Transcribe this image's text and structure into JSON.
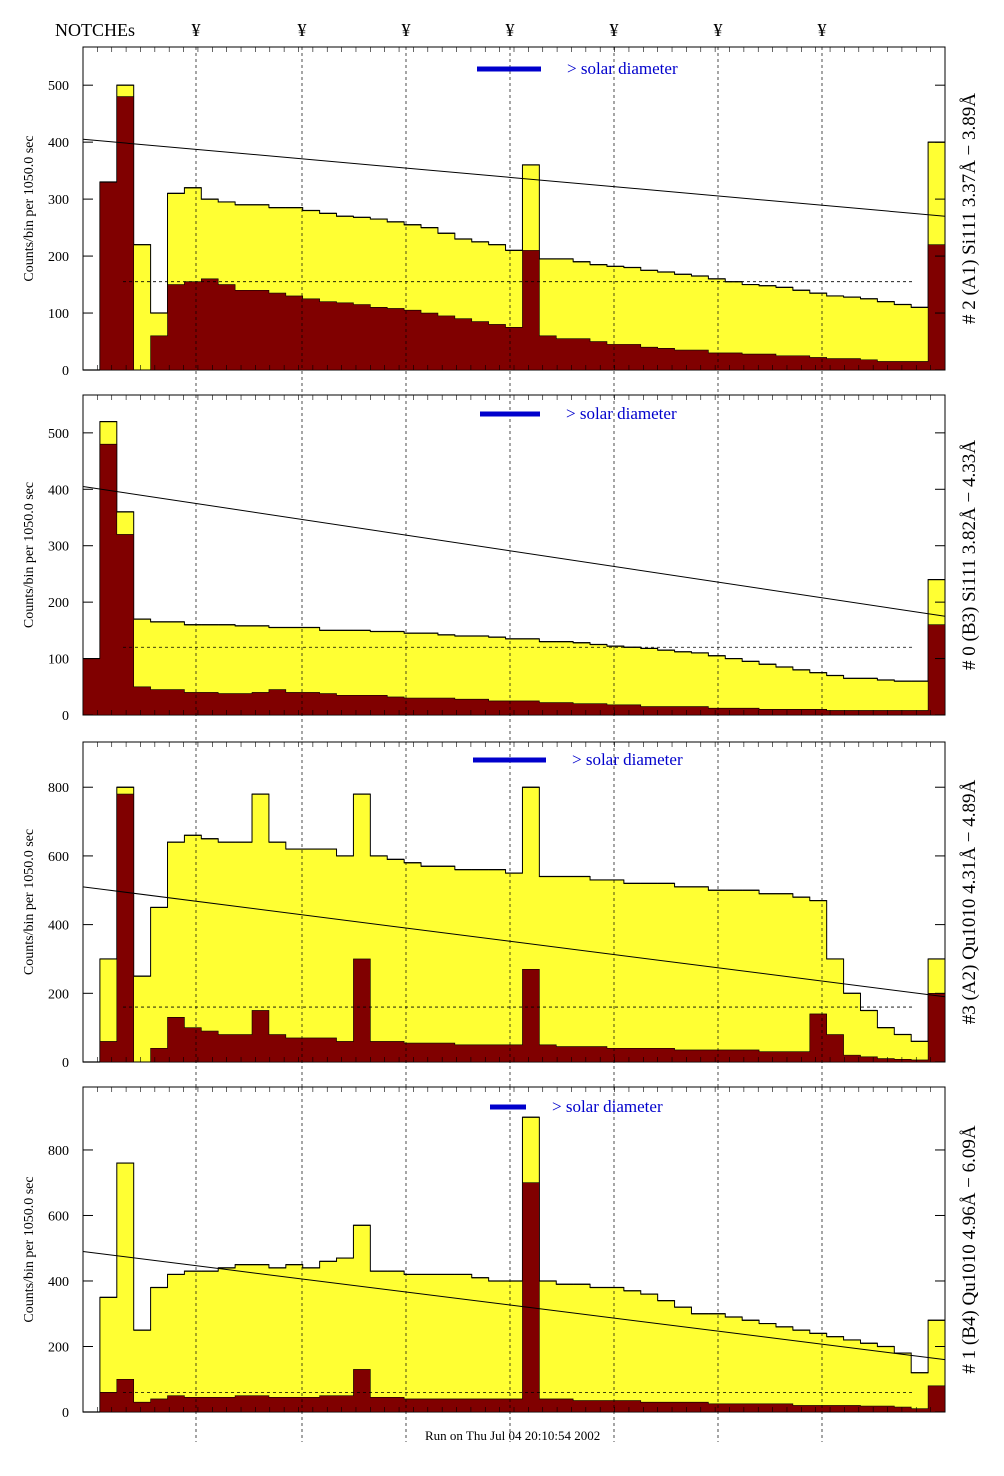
{
  "header": {
    "notches_label": "NOTCHEs",
    "notch_symbol": "¥"
  },
  "footer": {
    "run_text": "Run on Thu Jul 04 20:10:54 2002"
  },
  "colors": {
    "total_fill": "#ffff33",
    "sub_fill": "#800000",
    "legend_bar": "#0000cc",
    "line_blue": "#0000cc"
  },
  "chart_data": [
    {
      "type": "area",
      "panel_title": "# 2 (A1) Si111  3.37Å − 3.89Å",
      "ylabel": "Counts/bin per   1050.0 sec",
      "yticks": [
        0,
        100,
        200,
        300,
        400,
        500
      ],
      "ylim": [
        0,
        560
      ],
      "legend_text": "> solar diameter",
      "x": [
        0,
        1,
        2,
        3,
        4,
        5,
        6,
        7,
        8,
        9,
        10,
        11,
        12,
        13,
        14,
        15,
        16,
        17,
        18,
        19,
        20,
        21,
        22,
        23,
        24,
        25,
        26,
        27,
        28,
        29,
        30,
        31,
        32,
        33,
        34,
        35,
        36,
        37,
        38,
        39,
        40,
        41,
        42,
        43,
        44,
        45,
        46,
        47,
        48,
        49,
        50
      ],
      "total": [
        0,
        330,
        500,
        220,
        100,
        310,
        320,
        300,
        295,
        290,
        290,
        285,
        285,
        280,
        275,
        270,
        268,
        265,
        260,
        255,
        250,
        240,
        230,
        225,
        220,
        210,
        360,
        195,
        195,
        190,
        185,
        182,
        180,
        175,
        172,
        168,
        165,
        160,
        155,
        150,
        148,
        145,
        140,
        135,
        130,
        128,
        125,
        120,
        115,
        110,
        400
      ],
      "sub": [
        0,
        330,
        480,
        0,
        60,
        150,
        155,
        160,
        150,
        140,
        140,
        135,
        130,
        125,
        120,
        118,
        115,
        110,
        108,
        105,
        100,
        95,
        90,
        85,
        80,
        75,
        210,
        60,
        55,
        55,
        50,
        45,
        45,
        40,
        38,
        35,
        35,
        30,
        30,
        28,
        28,
        25,
        25,
        22,
        20,
        20,
        18,
        15,
        15,
        15,
        220
      ],
      "line_start": 405,
      "line_end": 270,
      "dashed_level": 155
    },
    {
      "type": "area",
      "panel_title": "# 0 (B3) Si111  3.82Å − 4.33Å",
      "ylabel": "Counts/bin per   1050.0 sec",
      "yticks": [
        0,
        100,
        200,
        300,
        400,
        500
      ],
      "ylim": [
        0,
        560
      ],
      "legend_text": "> solar diameter",
      "x": [
        0,
        1,
        2,
        3,
        4,
        5,
        6,
        7,
        8,
        9,
        10,
        11,
        12,
        13,
        14,
        15,
        16,
        17,
        18,
        19,
        20,
        21,
        22,
        23,
        24,
        25,
        26,
        27,
        28,
        29,
        30,
        31,
        32,
        33,
        34,
        35,
        36,
        37,
        38,
        39,
        40,
        41,
        42,
        43,
        44,
        45,
        46,
        47,
        48,
        49,
        50
      ],
      "total": [
        100,
        520,
        360,
        170,
        165,
        165,
        160,
        160,
        160,
        158,
        158,
        155,
        155,
        155,
        150,
        150,
        150,
        148,
        148,
        145,
        145,
        142,
        140,
        140,
        138,
        135,
        135,
        130,
        130,
        128,
        125,
        122,
        120,
        118,
        115,
        112,
        110,
        105,
        100,
        95,
        90,
        85,
        80,
        75,
        70,
        65,
        65,
        62,
        60,
        60,
        240
      ],
      "sub": [
        100,
        480,
        320,
        50,
        45,
        45,
        40,
        40,
        38,
        38,
        40,
        45,
        40,
        40,
        38,
        35,
        35,
        35,
        32,
        30,
        30,
        30,
        28,
        28,
        25,
        25,
        25,
        22,
        22,
        20,
        20,
        18,
        18,
        15,
        15,
        15,
        15,
        12,
        12,
        12,
        10,
        10,
        10,
        10,
        8,
        8,
        8,
        8,
        8,
        8,
        160
      ],
      "line_start": 405,
      "line_end": 175,
      "dashed_level": 120
    },
    {
      "type": "area",
      "panel_title": "#3 (A2) Qu1010  4.31Å − 4.89Å",
      "ylabel": "Counts/bin per   1050.0 sec",
      "yticks": [
        0,
        200,
        400,
        600,
        800
      ],
      "ylim": [
        0,
        920
      ],
      "legend_text": "> solar diameter",
      "x": [
        0,
        1,
        2,
        3,
        4,
        5,
        6,
        7,
        8,
        9,
        10,
        11,
        12,
        13,
        14,
        15,
        16,
        17,
        18,
        19,
        20,
        21,
        22,
        23,
        24,
        25,
        26,
        27,
        28,
        29,
        30,
        31,
        32,
        33,
        34,
        35,
        36,
        37,
        38,
        39,
        40,
        41,
        42,
        43,
        44,
        45,
        46,
        47,
        48,
        49,
        50
      ],
      "total": [
        0,
        300,
        800,
        250,
        450,
        640,
        660,
        650,
        640,
        640,
        780,
        640,
        620,
        620,
        620,
        600,
        780,
        600,
        590,
        580,
        570,
        570,
        560,
        560,
        560,
        550,
        800,
        540,
        540,
        540,
        530,
        530,
        520,
        520,
        520,
        510,
        510,
        500,
        500,
        500,
        490,
        490,
        480,
        470,
        300,
        200,
        150,
        100,
        80,
        60,
        300
      ],
      "sub": [
        0,
        60,
        780,
        0,
        40,
        130,
        100,
        90,
        80,
        80,
        150,
        80,
        70,
        70,
        70,
        60,
        300,
        60,
        60,
        55,
        55,
        55,
        50,
        50,
        50,
        50,
        270,
        50,
        45,
        45,
        45,
        40,
        40,
        40,
        40,
        35,
        35,
        35,
        35,
        35,
        30,
        30,
        30,
        140,
        80,
        20,
        15,
        10,
        8,
        6,
        200
      ],
      "line_start": 510,
      "line_end": 190,
      "dashed_level": 160
    },
    {
      "type": "area",
      "panel_title": "# 1 (B4) Qu1010 4.96Å − 6.09Å",
      "ylabel": "Counts/bin per   1050.0 sec",
      "yticks": [
        0,
        200,
        400,
        600,
        800
      ],
      "ylim": [
        0,
        980
      ],
      "legend_text": "> solar diameter",
      "x": [
        0,
        1,
        2,
        3,
        4,
        5,
        6,
        7,
        8,
        9,
        10,
        11,
        12,
        13,
        14,
        15,
        16,
        17,
        18,
        19,
        20,
        21,
        22,
        23,
        24,
        25,
        26,
        27,
        28,
        29,
        30,
        31,
        32,
        33,
        34,
        35,
        36,
        37,
        38,
        39,
        40,
        41,
        42,
        43,
        44,
        45,
        46,
        47,
        48,
        49,
        50
      ],
      "total": [
        0,
        350,
        760,
        250,
        380,
        420,
        430,
        430,
        440,
        450,
        450,
        440,
        450,
        440,
        460,
        470,
        570,
        430,
        430,
        420,
        420,
        420,
        420,
        410,
        400,
        400,
        900,
        400,
        390,
        390,
        380,
        380,
        370,
        360,
        340,
        320,
        300,
        300,
        290,
        280,
        270,
        260,
        250,
        240,
        230,
        220,
        210,
        200,
        180,
        120,
        280
      ],
      "sub": [
        0,
        60,
        100,
        30,
        40,
        50,
        45,
        45,
        45,
        50,
        50,
        45,
        45,
        45,
        50,
        50,
        130,
        45,
        45,
        40,
        40,
        40,
        40,
        40,
        40,
        40,
        700,
        40,
        40,
        35,
        35,
        35,
        35,
        30,
        30,
        30,
        30,
        25,
        25,
        25,
        25,
        25,
        20,
        20,
        20,
        20,
        18,
        18,
        15,
        10,
        80
      ],
      "line_start": 490,
      "line_end": 160,
      "dashed_level": 60
    }
  ]
}
